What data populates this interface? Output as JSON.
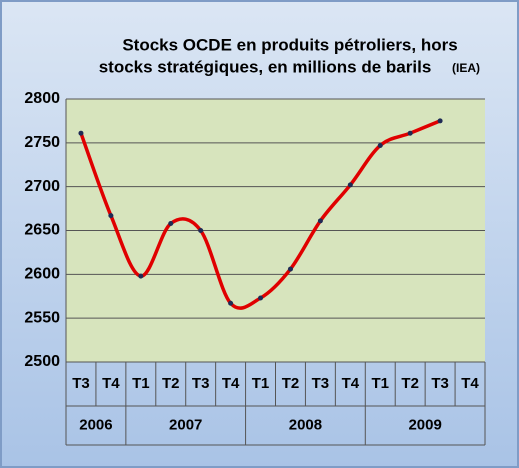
{
  "chart_data": {
    "type": "line",
    "title_lines": [
      "Stocks OCDE en produits pétroliers, hors",
      "stocks stratégiques, en millions de barils"
    ],
    "source": "(IEA)",
    "categories": [
      "T3",
      "T4",
      "T1",
      "T2",
      "T3",
      "T4",
      "T1",
      "T2",
      "T3",
      "T4",
      "T1",
      "T2",
      "T3",
      "T4"
    ],
    "groups": [
      {
        "label": "2006",
        "span": 2
      },
      {
        "label": "2007",
        "span": 4
      },
      {
        "label": "2008",
        "span": 4
      },
      {
        "label": "2009",
        "span": 4
      }
    ],
    "series": [
      {
        "color": "#e00000",
        "marker_color": "#1f2a55",
        "values": [
          2761,
          2667,
          2598,
          2658,
          2650,
          2567,
          2573,
          2606,
          2661,
          2702,
          2747,
          2761,
          2775,
          null
        ]
      }
    ],
    "ylim": [
      2500,
      2800
    ],
    "yticks": [
      2500,
      2550,
      2600,
      2650,
      2700,
      2750,
      2800
    ],
    "grid": true,
    "smooth": true
  }
}
